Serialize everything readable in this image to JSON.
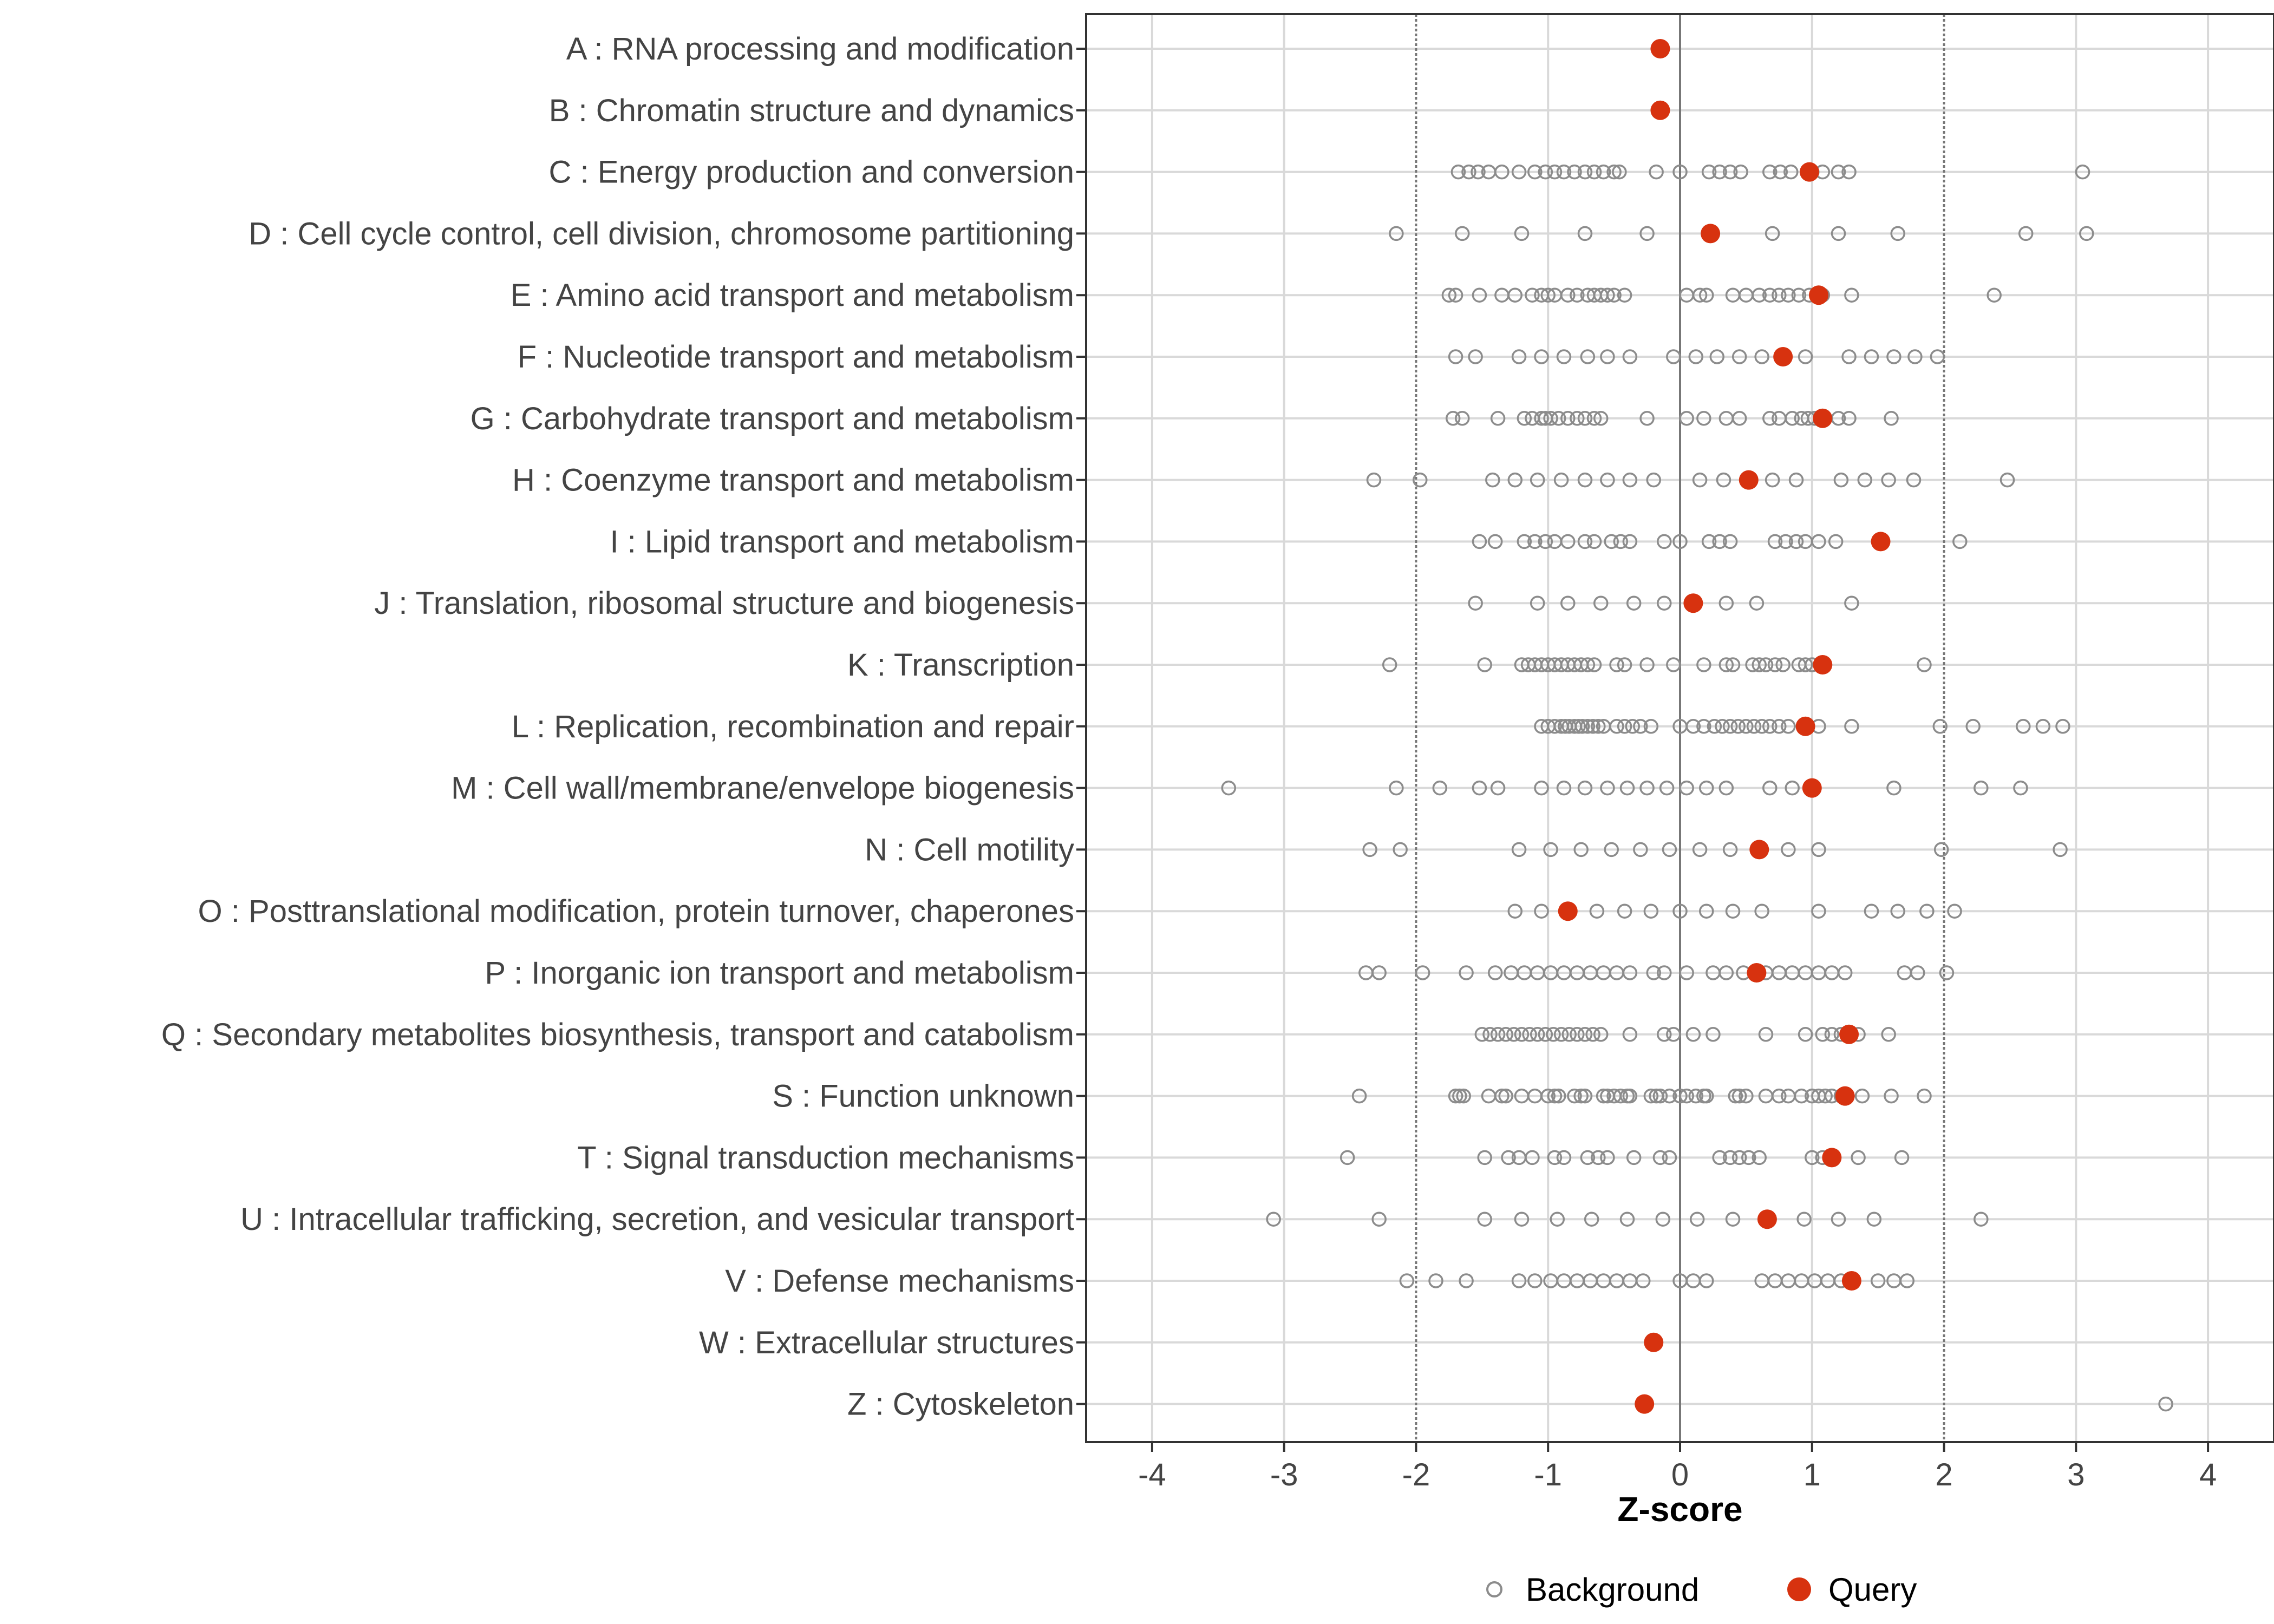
{
  "chart_data": {
    "type": "scatter",
    "title": "",
    "xlabel": "Z-score",
    "ylabel": "",
    "xlim": [
      -4.5,
      4.5
    ],
    "x_ticks": [
      -4,
      -3,
      -2,
      -1,
      0,
      1,
      2,
      3,
      4
    ],
    "threshold_lines": [
      -2,
      2
    ],
    "zero_line": 0,
    "grid": true,
    "colors": {
      "background": "#8c8c8c",
      "query": "#d7320f",
      "grid": "#d9d9d9",
      "threshold": "#777777",
      "zero": "#777777"
    },
    "legend": {
      "position": "bottom",
      "items": [
        "Background",
        "Query"
      ]
    },
    "categories": [
      {
        "label": "A : RNA processing and modification",
        "query": -0.15,
        "background": []
      },
      {
        "label": "B : Chromatin structure and dynamics",
        "query": -0.15,
        "background": []
      },
      {
        "label": "C : Energy production and conversion",
        "query": 0.98,
        "background": [
          -1.68,
          -1.6,
          -1.53,
          -1.45,
          -1.35,
          -1.22,
          -1.1,
          -1.02,
          -0.95,
          -0.88,
          -0.8,
          -0.72,
          -0.65,
          -0.58,
          -0.5,
          -0.46,
          -0.18,
          0.0,
          0.22,
          0.3,
          0.38,
          0.46,
          0.68,
          0.76,
          0.84,
          1.0,
          1.08,
          1.2,
          1.28,
          3.05
        ]
      },
      {
        "label": "D : Cell cycle control, cell division, chromosome partitioning",
        "query": 0.23,
        "background": [
          -2.15,
          -1.65,
          -1.2,
          -0.72,
          -0.25,
          0.7,
          1.2,
          1.65,
          2.62,
          3.08
        ]
      },
      {
        "label": "E : Amino acid transport and metabolism",
        "query": 1.05,
        "background": [
          -1.75,
          -1.7,
          -1.52,
          -1.35,
          -1.25,
          -1.12,
          -1.05,
          -1.0,
          -0.95,
          -0.85,
          -0.78,
          -0.7,
          -0.65,
          -0.6,
          -0.55,
          -0.5,
          -0.42,
          0.05,
          0.15,
          0.2,
          0.4,
          0.5,
          0.6,
          0.68,
          0.75,
          0.82,
          0.9,
          0.98,
          1.08,
          1.3,
          2.38
        ]
      },
      {
        "label": "F : Nucleotide transport and metabolism",
        "query": 0.78,
        "background": [
          -1.7,
          -1.55,
          -1.22,
          -1.05,
          -0.88,
          -0.7,
          -0.55,
          -0.38,
          -0.05,
          0.12,
          0.28,
          0.45,
          0.62,
          0.95,
          1.28,
          1.45,
          1.62,
          1.78,
          1.95
        ]
      },
      {
        "label": "G : Carbohydrate transport and metabolism",
        "query": 1.08,
        "background": [
          -1.72,
          -1.65,
          -1.38,
          -1.18,
          -1.12,
          -1.05,
          -1.02,
          -0.98,
          -0.92,
          -0.85,
          -0.78,
          -0.72,
          -0.65,
          -0.6,
          -0.25,
          0.05,
          0.18,
          0.35,
          0.45,
          0.68,
          0.75,
          0.85,
          0.92,
          0.97,
          1.02,
          1.2,
          1.28,
          1.6
        ]
      },
      {
        "label": "H : Coenzyme transport and metabolism",
        "query": 0.52,
        "background": [
          -2.32,
          -1.97,
          -1.42,
          -1.25,
          -1.08,
          -0.9,
          -0.72,
          -0.55,
          -0.38,
          -0.2,
          0.15,
          0.33,
          0.7,
          0.88,
          1.22,
          1.4,
          1.58,
          1.77,
          2.48
        ]
      },
      {
        "label": "I : Lipid transport and metabolism",
        "query": 1.52,
        "background": [
          -1.52,
          -1.4,
          -1.18,
          -1.1,
          -1.02,
          -0.95,
          -0.85,
          -0.72,
          -0.65,
          -0.52,
          -0.45,
          -0.38,
          -0.12,
          0.0,
          0.22,
          0.3,
          0.38,
          0.72,
          0.8,
          0.88,
          0.95,
          1.05,
          1.18,
          2.12
        ]
      },
      {
        "label": "J : Translation, ribosomal structure and biogenesis",
        "query": 0.1,
        "background": [
          -1.55,
          -1.08,
          -0.85,
          -0.6,
          -0.35,
          -0.12,
          0.35,
          0.58,
          1.3
        ]
      },
      {
        "label": "K : Transcription",
        "query": 1.08,
        "background": [
          -2.2,
          -1.48,
          -1.2,
          -1.15,
          -1.1,
          -1.05,
          -1.0,
          -0.95,
          -0.9,
          -0.85,
          -0.8,
          -0.75,
          -0.7,
          -0.65,
          -0.48,
          -0.42,
          -0.25,
          -0.05,
          0.18,
          0.35,
          0.4,
          0.55,
          0.6,
          0.65,
          0.72,
          0.78,
          0.9,
          0.95,
          1.0,
          1.85
        ]
      },
      {
        "label": "L : Replication, recombination and repair",
        "query": 0.95,
        "background": [
          -1.05,
          -1.0,
          -0.95,
          -0.9,
          -0.87,
          -0.84,
          -0.8,
          -0.77,
          -0.74,
          -0.7,
          -0.66,
          -0.62,
          -0.58,
          -0.48,
          -0.42,
          -0.36,
          -0.3,
          -0.22,
          0.0,
          0.1,
          0.18,
          0.26,
          0.32,
          0.38,
          0.44,
          0.5,
          0.56,
          0.62,
          0.68,
          0.75,
          0.82,
          1.05,
          1.3,
          1.97,
          2.22,
          2.6,
          2.75,
          2.9
        ]
      },
      {
        "label": "M : Cell wall/membrane/envelope biogenesis",
        "query": 1.0,
        "background": [
          -3.42,
          -2.15,
          -1.82,
          -1.52,
          -1.38,
          -1.05,
          -0.88,
          -0.72,
          -0.55,
          -0.4,
          -0.25,
          -0.1,
          0.05,
          0.2,
          0.35,
          0.68,
          0.85,
          1.62,
          2.28,
          2.58
        ]
      },
      {
        "label": "N : Cell motility",
        "query": 0.6,
        "background": [
          -2.35,
          -2.12,
          -1.22,
          -0.98,
          -0.75,
          -0.52,
          -0.3,
          -0.08,
          0.15,
          0.38,
          0.82,
          1.05,
          1.98,
          2.88
        ]
      },
      {
        "label": "O : Posttranslational modification, protein turnover, chaperones",
        "query": -0.85,
        "background": [
          -1.25,
          -1.05,
          -0.63,
          -0.42,
          -0.22,
          0.0,
          0.2,
          0.4,
          0.62,
          1.05,
          1.45,
          1.65,
          1.87,
          2.08
        ]
      },
      {
        "label": "P : Inorganic ion transport and metabolism",
        "query": 0.58,
        "background": [
          -2.38,
          -2.28,
          -1.95,
          -1.62,
          -1.4,
          -1.28,
          -1.18,
          -1.08,
          -0.98,
          -0.88,
          -0.78,
          -0.68,
          -0.58,
          -0.48,
          -0.38,
          -0.2,
          -0.12,
          0.05,
          0.25,
          0.35,
          0.48,
          0.65,
          0.75,
          0.85,
          0.95,
          1.05,
          1.15,
          1.25,
          1.7,
          1.8,
          2.02
        ]
      },
      {
        "label": "Q : Secondary metabolites biosynthesis, transport and catabolism",
        "query": 1.28,
        "background": [
          -1.5,
          -1.44,
          -1.38,
          -1.32,
          -1.26,
          -1.2,
          -1.14,
          -1.08,
          -1.02,
          -0.96,
          -0.9,
          -0.84,
          -0.78,
          -0.72,
          -0.66,
          -0.6,
          -0.38,
          -0.12,
          -0.05,
          0.1,
          0.25,
          0.65,
          0.95,
          1.08,
          1.15,
          1.22,
          1.35,
          1.58
        ]
      },
      {
        "label": "S : Function unknown",
        "query": 1.25,
        "background": [
          -2.43,
          -1.7,
          -1.67,
          -1.64,
          -1.45,
          -1.35,
          -1.32,
          -1.2,
          -1.1,
          -1.0,
          -0.95,
          -0.92,
          -0.8,
          -0.75,
          -0.72,
          -0.58,
          -0.55,
          -0.5,
          -0.45,
          -0.4,
          -0.38,
          -0.22,
          -0.18,
          -0.15,
          -0.08,
          0.0,
          0.05,
          0.12,
          0.18,
          0.2,
          0.42,
          0.45,
          0.5,
          0.65,
          0.75,
          0.82,
          0.92,
          1.0,
          1.05,
          1.1,
          1.15,
          1.22,
          1.38,
          1.6,
          1.85
        ]
      },
      {
        "label": "T : Signal transduction mechanisms",
        "query": 1.15,
        "background": [
          -2.52,
          -1.48,
          -1.3,
          -1.22,
          -1.12,
          -0.95,
          -0.88,
          -0.7,
          -0.62,
          -0.55,
          -0.35,
          -0.15,
          -0.08,
          0.3,
          0.38,
          0.45,
          0.52,
          0.6,
          1.0,
          1.08,
          1.35,
          1.68
        ]
      },
      {
        "label": "U : Intracellular trafficking, secretion, and vesicular transport",
        "query": 0.66,
        "background": [
          -3.08,
          -2.28,
          -1.48,
          -1.2,
          -0.93,
          -0.67,
          -0.4,
          -0.13,
          0.13,
          0.4,
          0.94,
          1.2,
          1.47,
          2.28
        ]
      },
      {
        "label": "V : Defense mechanisms",
        "query": 1.3,
        "background": [
          -2.07,
          -1.85,
          -1.62,
          -1.22,
          -1.1,
          -0.98,
          -0.88,
          -0.78,
          -0.68,
          -0.58,
          -0.48,
          -0.38,
          -0.28,
          0.0,
          0.1,
          0.2,
          0.62,
          0.72,
          0.82,
          0.92,
          1.02,
          1.12,
          1.22,
          1.5,
          1.62,
          1.72
        ]
      },
      {
        "label": "W : Extracellular structures",
        "query": -0.2,
        "background": []
      },
      {
        "label": "Z : Cytoskeleton",
        "query": -0.27,
        "background": [
          3.68
        ]
      }
    ]
  }
}
